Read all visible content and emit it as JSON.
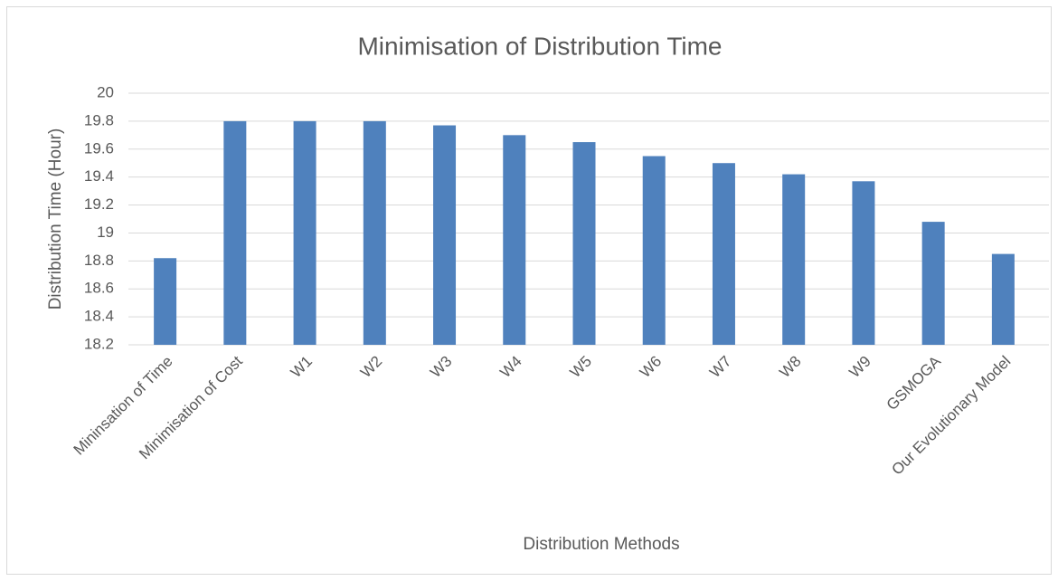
{
  "chart_data": {
    "type": "bar",
    "title": "Minimisation of Distribution Time",
    "x_label": "Distribution Methods",
    "y_label": "Distribution Time (Hour)",
    "categories": [
      "Mininsation of Time",
      "Minimisation of Cost",
      "W1",
      "W2",
      "W3",
      "W4",
      "W5",
      "W6",
      "W7",
      "W8",
      "W9",
      "GSMOGA",
      "Our Evolutionary Model"
    ],
    "values": [
      18.82,
      19.8,
      19.8,
      19.8,
      19.77,
      19.7,
      19.65,
      19.55,
      19.5,
      19.42,
      19.37,
      19.08,
      18.85
    ],
    "color": "#4f81bd",
    "ylim": [
      18.2,
      20
    ],
    "yticks": [
      18.2,
      18.4,
      18.6,
      18.8,
      19,
      19.2,
      19.4,
      19.6,
      19.8,
      20
    ],
    "grid": true
  }
}
